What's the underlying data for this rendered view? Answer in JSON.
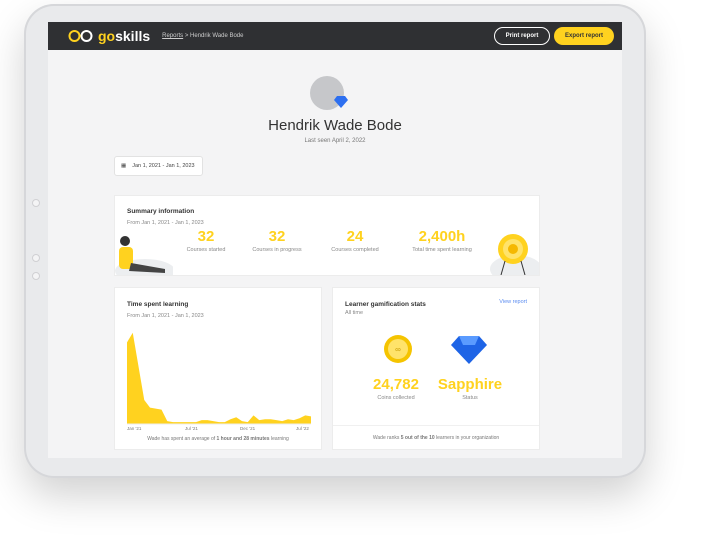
{
  "header": {
    "logo": {
      "go": "go",
      "skills": "skills"
    },
    "breadcrumb": [
      "Reports",
      "Hendrik Wade Bode"
    ],
    "print_label": "Print report",
    "export_label": "Export report"
  },
  "profile": {
    "name": "Hendrik Wade Bode",
    "last_seen": "Last seen April 2, 2022"
  },
  "date_range": "Jan 1, 2021 - Jan 1, 2023",
  "summary": {
    "title": "Summary information",
    "range": "From Jan 1, 2021 - Jan 1, 2023",
    "stats": [
      {
        "value": "32",
        "label": "Courses started"
      },
      {
        "value": "32",
        "label": "Courses in progress"
      },
      {
        "value": "24",
        "label": "Courses completed"
      },
      {
        "value": "2,400h",
        "label": "Total time spent learning"
      }
    ]
  },
  "time_card": {
    "title": "Time spent learning",
    "range": "From Jan 1, 2021 - Jan 1, 2023",
    "footer_pre": "Wade has spent an average of ",
    "footer_bold": "1 hour and 28 minutes",
    "footer_post": " learning"
  },
  "chart_data": {
    "type": "area",
    "x_ticks": [
      "Jan '21",
      "Jul '21",
      "Dec '21",
      "Jul '22"
    ],
    "values": [
      85,
      95,
      60,
      25,
      17,
      16,
      15,
      3,
      2,
      2,
      2,
      2,
      2,
      4,
      4,
      3,
      2,
      2,
      5,
      7,
      3,
      2,
      9,
      4,
      5,
      5,
      4,
      3,
      5,
      4,
      6,
      9,
      8
    ],
    "color": "#ffd21f"
  },
  "gamification": {
    "title": "Learner gamification stats",
    "subtitle": "All time",
    "view_report": "View report",
    "coins": {
      "value": "24,782",
      "label": "Coins collected"
    },
    "status": {
      "value": "Sapphire",
      "label": "Status"
    },
    "footer_pre": "Wade ranks ",
    "footer_bold": "5 out of the 10",
    "footer_post": " learners in your organization"
  },
  "colors": {
    "accent": "#ffd21f",
    "topbar": "#2f3033",
    "link": "#5b8cf0"
  }
}
